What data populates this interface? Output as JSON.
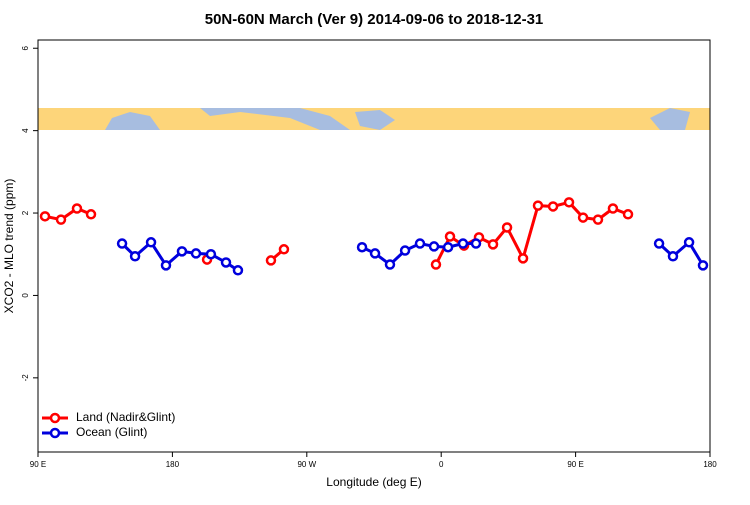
{
  "chart_data": {
    "type": "line",
    "title": "50N-60N March (Ver 9)   2014-09-06 to 2018-12-31",
    "x_label": "Longitude (deg E)",
    "y_label": "XCO2 - MLO trend (ppm)",
    "xlim": [
      90,
      540
    ],
    "ylim": [
      -3.8,
      6.2
    ],
    "xticks": [
      {
        "value": 90,
        "label": "90 E"
      },
      180,
      {
        "value": 270,
        "label": "90 W"
      },
      {
        "value": 360,
        "label": "0"
      },
      {
        "value": 450,
        "label": "90 E"
      },
      {
        "value": 540,
        "label": "180"
      }
    ],
    "yticks": [
      -2,
      0,
      2,
      4,
      6
    ],
    "legend": "bottom-left",
    "series": [
      {
        "name": "Land (Nadir&Glint)",
        "color": "#ff0000",
        "x": [
          94.7,
          105.4,
          116.1,
          125.5,
          null,
          203.2,
          null,
          246.0,
          254.7,
          null,
          356.5,
          365.9,
          375.3,
          385.3,
          394.7,
          404.1,
          414.8,
          424.8,
          434.9,
          445.6,
          455.0,
          465.0,
          475.0,
          485.1
        ],
        "values": [
          1.92,
          1.84,
          2.11,
          1.97,
          null,
          0.87,
          null,
          0.85,
          1.12,
          null,
          0.75,
          1.43,
          1.21,
          1.41,
          1.24,
          1.65,
          0.9,
          2.18,
          2.16,
          2.26,
          1.89,
          1.84,
          2.11,
          1.97
        ]
      },
      {
        "name": "Ocean (Glint)",
        "color": "#0000dd",
        "x": [
          146.3,
          155.0,
          165.7,
          175.7,
          186.4,
          195.8,
          205.8,
          215.9,
          223.9,
          null,
          307.0,
          315.7,
          325.7,
          335.8,
          345.8,
          355.2,
          364.6,
          374.6,
          383.3,
          null,
          505.9,
          515.2,
          526.0,
          535.3
        ],
        "values": [
          1.26,
          0.95,
          1.29,
          0.73,
          1.07,
          1.02,
          1.0,
          0.8,
          0.61,
          null,
          1.17,
          1.02,
          0.75,
          1.09,
          1.26,
          1.19,
          1.17,
          1.26,
          1.26,
          null,
          1.26,
          0.95,
          1.29,
          0.73
        ]
      }
    ]
  }
}
